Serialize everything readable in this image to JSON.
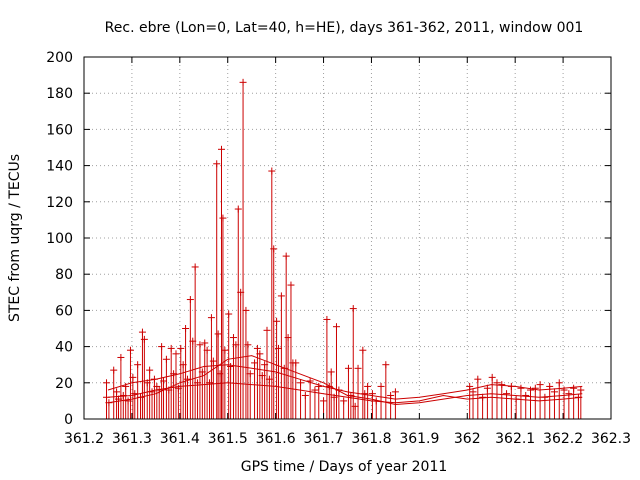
{
  "chart_data": {
    "type": "scatter",
    "title": "Rec. ebre (Lon=0, Lat=40, h=HE), days 361-362, 2011, window 001",
    "xlabel": "GPS time / Days of year 2011",
    "ylabel": "STEC from uqrg / TECUs",
    "xlim": [
      361.2,
      362.3
    ],
    "ylim": [
      0,
      200
    ],
    "x_ticks": [
      "361.2",
      "361.3",
      "361.4",
      "361.5",
      "361.6",
      "361.7",
      "361.8",
      "361.9",
      "362",
      "362.1",
      "362.2",
      "362.3"
    ],
    "x_tick_values": [
      361.2,
      361.3,
      361.4,
      361.5,
      361.6,
      361.7,
      361.8,
      361.9,
      362.0,
      362.1,
      362.2,
      362.3
    ],
    "y_ticks": [
      "0",
      "20",
      "40",
      "60",
      "80",
      "100",
      "120",
      "140",
      "160",
      "180",
      "200"
    ],
    "y_tick_values": [
      0,
      20,
      40,
      60,
      80,
      100,
      120,
      140,
      160,
      180,
      200
    ],
    "grid": true,
    "legend": "none",
    "series": [
      {
        "color": "#cc0000",
        "marker": "plus-with-error-bar-to-zero",
        "points": [
          [
            361.247,
            20
          ],
          [
            361.247,
            12
          ],
          [
            361.252,
            9
          ],
          [
            361.262,
            27
          ],
          [
            361.268,
            15
          ],
          [
            361.272,
            11
          ],
          [
            361.277,
            34
          ],
          [
            361.282,
            13
          ],
          [
            361.287,
            18
          ],
          [
            361.292,
            10
          ],
          [
            361.297,
            38
          ],
          [
            361.302,
            23
          ],
          [
            361.306,
            14
          ],
          [
            361.312,
            30
          ],
          [
            361.318,
            12
          ],
          [
            361.322,
            48
          ],
          [
            361.326,
            44
          ],
          [
            361.332,
            20
          ],
          [
            361.337,
            27
          ],
          [
            361.342,
            15
          ],
          [
            361.347,
            22
          ],
          [
            361.352,
            18
          ],
          [
            361.357,
            16
          ],
          [
            361.362,
            40
          ],
          [
            361.366,
            21
          ],
          [
            361.372,
            33
          ],
          [
            361.377,
            16
          ],
          [
            361.382,
            39
          ],
          [
            361.387,
            25
          ],
          [
            361.392,
            36
          ],
          [
            361.397,
            17
          ],
          [
            361.402,
            39
          ],
          [
            361.407,
            30
          ],
          [
            361.412,
            50
          ],
          [
            361.416,
            22
          ],
          [
            361.422,
            66
          ],
          [
            361.427,
            43
          ],
          [
            361.432,
            84
          ],
          [
            361.437,
            20
          ],
          [
            361.442,
            41
          ],
          [
            361.447,
            26
          ],
          [
            361.452,
            42
          ],
          [
            361.457,
            38
          ],
          [
            361.462,
            20
          ],
          [
            361.466,
            56
          ],
          [
            361.47,
            32
          ],
          [
            361.477,
            141
          ],
          [
            361.48,
            47
          ],
          [
            361.484,
            25
          ],
          [
            361.487,
            149
          ],
          [
            361.49,
            111
          ],
          [
            361.494,
            38
          ],
          [
            361.502,
            58
          ],
          [
            361.506,
            29
          ],
          [
            361.512,
            45
          ],
          [
            361.517,
            41
          ],
          [
            361.522,
            116
          ],
          [
            361.527,
            70
          ],
          [
            361.532,
            186
          ],
          [
            361.538,
            60
          ],
          [
            361.542,
            41
          ],
          [
            361.547,
            25
          ],
          [
            361.556,
            31
          ],
          [
            361.562,
            39
          ],
          [
            361.567,
            36
          ],
          [
            361.572,
            24
          ],
          [
            361.577,
            30
          ],
          [
            361.582,
            49
          ],
          [
            361.587,
            22
          ],
          [
            361.592,
            137
          ],
          [
            361.596,
            94
          ],
          [
            361.602,
            54
          ],
          [
            361.606,
            39
          ],
          [
            361.612,
            68
          ],
          [
            361.618,
            28
          ],
          [
            361.622,
            90
          ],
          [
            361.626,
            45
          ],
          [
            361.632,
            74
          ],
          [
            361.636,
            31
          ],
          [
            361.642,
            31
          ],
          [
            361.652,
            20
          ],
          [
            361.662,
            13
          ],
          [
            361.672,
            21
          ],
          [
            361.682,
            16
          ],
          [
            361.69,
            18
          ],
          [
            361.7,
            10
          ],
          [
            361.707,
            55
          ],
          [
            361.712,
            18
          ],
          [
            361.716,
            26
          ],
          [
            361.722,
            12
          ],
          [
            361.727,
            51
          ],
          [
            361.732,
            16
          ],
          [
            361.742,
            10
          ],
          [
            361.752,
            28
          ],
          [
            361.757,
            13
          ],
          [
            361.762,
            61
          ],
          [
            361.766,
            7
          ],
          [
            361.772,
            28
          ],
          [
            361.782,
            38
          ],
          [
            361.786,
            14
          ],
          [
            361.792,
            18
          ],
          [
            361.802,
            14
          ],
          [
            361.81,
            10
          ],
          [
            361.82,
            18
          ],
          [
            361.83,
            30
          ],
          [
            361.84,
            13
          ],
          [
            361.85,
            15
          ],
          [
            362.005,
            18
          ],
          [
            362.012,
            15
          ],
          [
            362.022,
            22
          ],
          [
            362.032,
            12
          ],
          [
            362.042,
            17
          ],
          [
            362.052,
            23
          ],
          [
            362.062,
            20
          ],
          [
            362.072,
            19
          ],
          [
            362.082,
            14
          ],
          [
            362.092,
            18
          ],
          [
            362.102,
            11
          ],
          [
            362.112,
            17
          ],
          [
            362.122,
            13
          ],
          [
            362.132,
            16
          ],
          [
            362.142,
            17
          ],
          [
            362.152,
            19
          ],
          [
            362.162,
            12
          ],
          [
            362.172,
            18
          ],
          [
            362.182,
            15
          ],
          [
            362.192,
            20
          ],
          [
            362.202,
            16
          ],
          [
            362.212,
            14
          ],
          [
            362.222,
            17
          ],
          [
            362.232,
            12
          ],
          [
            362.237,
            16
          ]
        ]
      }
    ],
    "tracks": [
      {
        "color": "#cc0000",
        "points": [
          [
            361.25,
            12
          ],
          [
            361.3,
            13
          ],
          [
            361.35,
            16
          ],
          [
            361.4,
            18
          ],
          [
            361.45,
            19
          ],
          [
            361.5,
            20
          ],
          [
            361.55,
            19
          ],
          [
            361.6,
            18
          ],
          [
            361.65,
            16
          ],
          [
            361.7,
            14
          ],
          [
            361.75,
            12
          ],
          [
            361.8,
            10
          ],
          [
            361.85,
            9
          ],
          [
            361.9,
            10
          ],
          [
            361.95,
            13
          ],
          [
            362.0,
            11
          ],
          [
            362.05,
            12
          ],
          [
            362.1,
            11
          ],
          [
            362.15,
            10
          ],
          [
            362.2,
            11
          ],
          [
            362.24,
            12
          ]
        ]
      },
      {
        "color": "#cc0000",
        "points": [
          [
            361.25,
            16
          ],
          [
            361.3,
            20
          ],
          [
            361.35,
            22
          ],
          [
            361.4,
            25
          ],
          [
            361.45,
            29
          ],
          [
            361.5,
            30
          ],
          [
            361.55,
            28
          ],
          [
            361.6,
            26
          ],
          [
            361.65,
            22
          ],
          [
            361.7,
            18
          ],
          [
            361.75,
            15
          ],
          [
            361.8,
            13
          ],
          [
            361.85,
            11
          ],
          [
            361.9,
            12
          ],
          [
            361.95,
            14
          ],
          [
            362.0,
            16
          ],
          [
            362.05,
            19
          ],
          [
            362.1,
            18
          ],
          [
            362.15,
            16
          ],
          [
            362.2,
            17
          ],
          [
            362.24,
            18
          ]
        ]
      },
      {
        "color": "#cc0000",
        "points": [
          [
            361.25,
            9
          ],
          [
            361.3,
            11
          ],
          [
            361.35,
            14
          ],
          [
            361.4,
            20
          ],
          [
            361.45,
            24
          ],
          [
            361.5,
            33
          ],
          [
            361.55,
            35
          ],
          [
            361.6,
            30
          ],
          [
            361.65,
            25
          ],
          [
            361.7,
            20
          ],
          [
            361.75,
            13
          ],
          [
            361.8,
            11
          ],
          [
            361.85,
            8
          ],
          [
            361.9,
            9
          ],
          [
            361.95,
            11
          ],
          [
            362.0,
            13
          ],
          [
            362.05,
            14
          ],
          [
            362.1,
            13
          ],
          [
            362.15,
            12
          ],
          [
            362.2,
            13
          ],
          [
            362.24,
            14
          ]
        ]
      }
    ]
  }
}
